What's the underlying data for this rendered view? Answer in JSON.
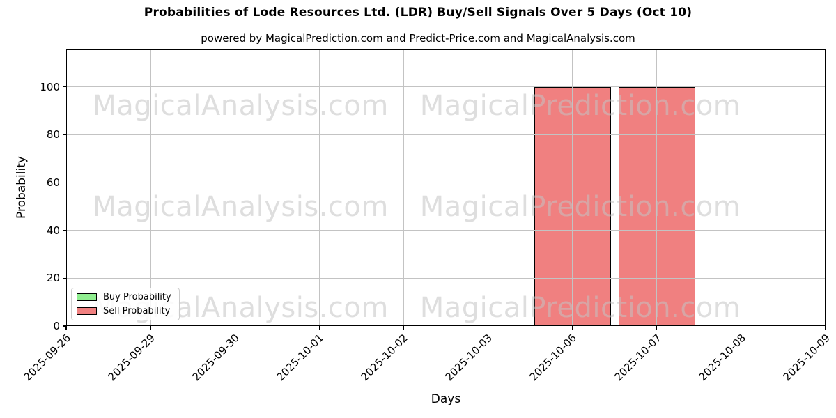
{
  "chart_data": {
    "type": "bar",
    "title": "Probabilities of Lode Resources Ltd. (LDR) Buy/Sell Signals Over 5 Days (Oct 10)",
    "subtitle": "powered by MagicalPrediction.com and Predict-Price.com and MagicalAnalysis.com",
    "xlabel": "Days",
    "ylabel": "Probability",
    "categories": [
      "2025-09-26",
      "2025-09-29",
      "2025-09-30",
      "2025-10-01",
      "2025-10-02",
      "2025-10-03",
      "2025-10-06",
      "2025-10-07",
      "2025-10-08",
      "2025-10-09"
    ],
    "series": [
      {
        "name": "Buy Probability",
        "color": "#90EE90",
        "values": [
          0,
          0,
          0,
          0,
          0,
          0,
          0,
          0,
          0,
          0
        ]
      },
      {
        "name": "Sell Probability",
        "color": "#F08080",
        "values": [
          0,
          0,
          0,
          0,
          0,
          0,
          100,
          100,
          0,
          0
        ]
      }
    ],
    "yticks": [
      0,
      20,
      40,
      60,
      80,
      100
    ],
    "ylim": [
      0,
      115.7
    ],
    "threshold_line": {
      "y": 110,
      "style": "dashed",
      "color": "#8a8a8a"
    },
    "grid": true,
    "bar_edge_color": "#000000",
    "legend": {
      "position": "lower left",
      "entries": [
        "Buy Probability",
        "Sell Probability"
      ]
    },
    "watermarks": [
      {
        "text": "MagicalAnalysis.com"
      },
      {
        "text": "MagicalPrediction.com"
      }
    ]
  }
}
